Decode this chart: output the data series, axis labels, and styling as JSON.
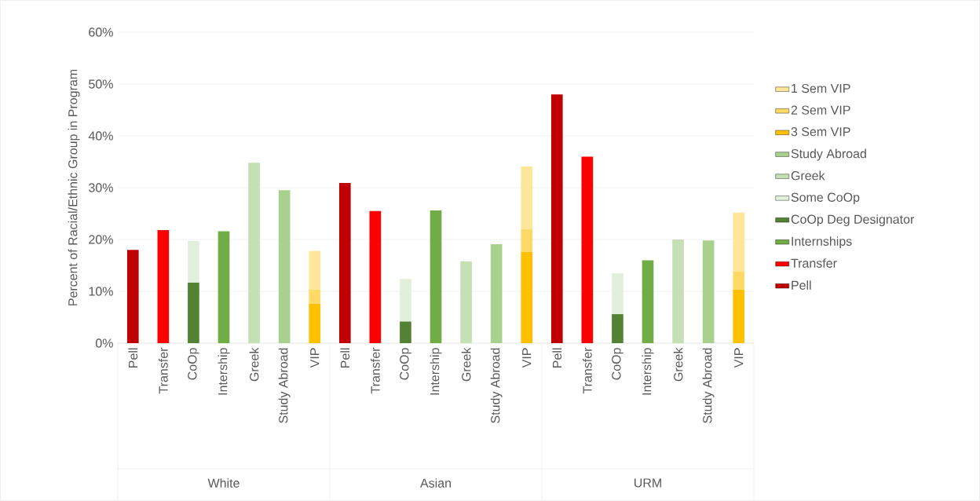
{
  "chart_data": {
    "type": "bar",
    "stacked": true,
    "ylabel": "Percent of Racial/Ethnic Group in Program",
    "categories": [
      "Pell",
      "Transfer",
      "CoOp",
      "Intership",
      "Greek",
      "Study Abroad",
      "VIP",
      "Pell",
      "Transfer",
      "CoOp",
      "Intership",
      "Greek",
      "Study Abroad",
      "VIP",
      "Pell",
      "Transfer",
      "CoOp",
      "Intership",
      "Greek",
      "Study Abroad",
      "VIP"
    ],
    "annotations": [
      "White",
      "Asian",
      "URM"
    ],
    "series": [
      {
        "name": "Pell",
        "color": "#c00000",
        "values": [
          18.0,
          null,
          null,
          null,
          null,
          null,
          null,
          30.9,
          null,
          null,
          null,
          null,
          null,
          null,
          48.0,
          null,
          null,
          null,
          null,
          null,
          null
        ]
      },
      {
        "name": "Transfer",
        "color": "#ff0000",
        "values": [
          null,
          21.8,
          null,
          null,
          null,
          null,
          null,
          null,
          25.5,
          null,
          null,
          null,
          null,
          null,
          null,
          36.0,
          null,
          null,
          null,
          null,
          null
        ]
      },
      {
        "name": "Internships",
        "color": "#70ad47",
        "values": [
          null,
          null,
          null,
          21.6,
          null,
          null,
          null,
          null,
          null,
          null,
          25.6,
          null,
          null,
          null,
          null,
          null,
          null,
          16.0,
          null,
          null,
          null
        ]
      },
      {
        "name": "CoOp Deg Designator",
        "color": "#548235",
        "values": [
          null,
          null,
          11.7,
          null,
          null,
          null,
          null,
          null,
          null,
          4.2,
          null,
          null,
          null,
          null,
          null,
          null,
          5.6,
          null,
          null,
          null,
          null
        ]
      },
      {
        "name": "Some CoOp",
        "color": "#e2efda",
        "values": [
          null,
          null,
          8.0,
          null,
          null,
          null,
          null,
          null,
          null,
          8.2,
          null,
          null,
          null,
          null,
          null,
          null,
          7.9,
          null,
          null,
          null,
          null
        ]
      },
      {
        "name": "Greek",
        "color": "#c5e0b4",
        "values": [
          null,
          null,
          null,
          null,
          34.8,
          null,
          null,
          null,
          null,
          null,
          null,
          15.8,
          null,
          null,
          null,
          null,
          null,
          null,
          20.0,
          null,
          null
        ]
      },
      {
        "name": "Study Abroad",
        "color": "#a9d18e",
        "values": [
          null,
          null,
          null,
          null,
          null,
          29.5,
          null,
          null,
          null,
          null,
          null,
          null,
          19.1,
          null,
          null,
          null,
          null,
          null,
          null,
          19.8,
          null
        ]
      },
      {
        "name": "3 Sem VIP",
        "color": "#ffc000",
        "values": [
          null,
          null,
          null,
          null,
          null,
          null,
          7.6,
          null,
          null,
          null,
          null,
          null,
          null,
          17.6,
          null,
          null,
          null,
          null,
          null,
          null,
          10.3
        ]
      },
      {
        "name": "2 Sem VIP",
        "color": "#ffd966",
        "values": [
          null,
          null,
          null,
          null,
          null,
          null,
          2.8,
          null,
          null,
          null,
          null,
          null,
          null,
          4.4,
          null,
          null,
          null,
          null,
          null,
          null,
          3.5
        ]
      },
      {
        "name": "1 Sem VIP",
        "color": "#ffe699",
        "values": [
          null,
          null,
          null,
          null,
          null,
          null,
          7.4,
          null,
          null,
          null,
          null,
          null,
          null,
          12.1,
          null,
          null,
          null,
          null,
          null,
          null,
          11.4
        ]
      }
    ],
    "ylim": [
      0,
      60
    ],
    "yticks": [
      {
        "value": 0,
        "label": "0%"
      },
      {
        "value": 10,
        "label": "10%"
      },
      {
        "value": 20,
        "label": "20%"
      },
      {
        "value": 30,
        "label": "30%"
      },
      {
        "value": 40,
        "label": "40%"
      },
      {
        "value": 50,
        "label": "50%"
      },
      {
        "value": 60,
        "label": "60%"
      }
    ],
    "grid": "y",
    "legend": "right"
  }
}
